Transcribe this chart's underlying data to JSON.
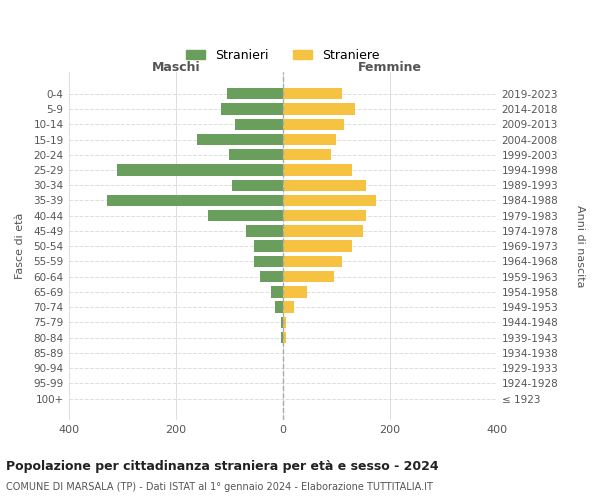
{
  "age_groups": [
    "100+",
    "95-99",
    "90-94",
    "85-89",
    "80-84",
    "75-79",
    "70-74",
    "65-69",
    "60-64",
    "55-59",
    "50-54",
    "45-49",
    "40-44",
    "35-39",
    "30-34",
    "25-29",
    "20-24",
    "15-19",
    "10-14",
    "5-9",
    "0-4"
  ],
  "birth_years": [
    "≤ 1923",
    "1924-1928",
    "1929-1933",
    "1934-1938",
    "1939-1943",
    "1944-1948",
    "1949-1953",
    "1954-1958",
    "1959-1963",
    "1964-1968",
    "1969-1973",
    "1974-1978",
    "1979-1983",
    "1984-1988",
    "1989-1993",
    "1994-1998",
    "1999-2003",
    "2004-2008",
    "2009-2013",
    "2014-2018",
    "2019-2023"
  ],
  "maschi": [
    0,
    0,
    0,
    0,
    3,
    4,
    14,
    22,
    43,
    54,
    54,
    70,
    140,
    330,
    95,
    310,
    100,
    160,
    90,
    115,
    105
  ],
  "femmine": [
    0,
    0,
    0,
    0,
    5,
    6,
    20,
    45,
    95,
    110,
    130,
    150,
    155,
    175,
    155,
    130,
    90,
    100,
    115,
    135,
    110
  ],
  "color_maschi": "#6a9e5c",
  "color_femmine": "#f5c242",
  "title": "Popolazione per cittadinanza straniera per età e sesso - 2024",
  "subtitle": "COMUNE DI MARSALA (TP) - Dati ISTAT al 1° gennaio 2024 - Elaborazione TUTTITALIA.IT",
  "xlabel_left": "Maschi",
  "xlabel_right": "Femmine",
  "ylabel_left": "Fasce di età",
  "ylabel_right": "Anni di nascita",
  "legend_maschi": "Stranieri",
  "legend_femmine": "Straniere",
  "xlim": 400,
  "background_color": "#ffffff"
}
